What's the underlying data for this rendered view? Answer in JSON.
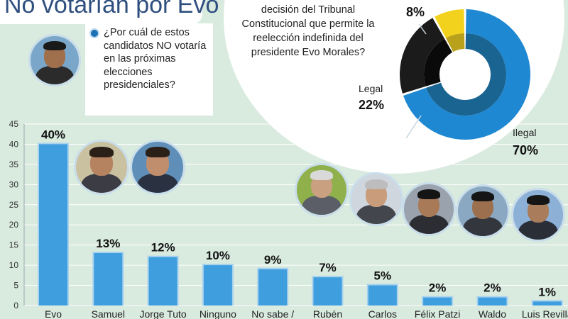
{
  "header": {
    "title": "No votarían por Evo"
  },
  "question": {
    "text": "¿Por cuál de estos candidatos NO votaría en las próximas elecciones presidenciales?"
  },
  "pie": {
    "question": "decisión del Tribunal Constitucional que permite la reelección indefinida del presidente Evo Morales?",
    "labels": {
      "legal": "Legal",
      "ilegal": "Ilegal"
    },
    "values_text": {
      "small": "8%",
      "legal": "22%",
      "ilegal": "70%"
    }
  },
  "chart_data": [
    {
      "type": "bar",
      "categories": [
        "Evo",
        "Samuel",
        "Jorge Tuto",
        "Ninguno",
        "No sabe /",
        "Rubén",
        "Carlos",
        "Félix Patzi",
        "Waldo",
        "Luis Revilla"
      ],
      "values": [
        40,
        13,
        12,
        10,
        9,
        7,
        5,
        2,
        2,
        1
      ],
      "value_labels": [
        "40%",
        "13%",
        "12%",
        "10%",
        "9%",
        "7%",
        "5%",
        "2%",
        "2%",
        "1%"
      ],
      "yticks": [
        "0",
        "5",
        "10",
        "15",
        "20",
        "25",
        "30",
        "35",
        "40",
        "45"
      ],
      "ylim": [
        0,
        45
      ],
      "grid": true,
      "colors": {
        "bar": "#3e9ede",
        "bar_edge": "#a8d2ee"
      }
    },
    {
      "type": "pie",
      "labels": [
        "Ilegal",
        "Legal",
        ""
      ],
      "values": [
        70,
        22,
        8
      ],
      "colors": [
        "#1f88d2",
        "#1b1b1b",
        "#f2d21c"
      ],
      "inner_colors": [
        "#1a6492",
        "#0a0a0a",
        "#b9a11c"
      ]
    }
  ]
}
